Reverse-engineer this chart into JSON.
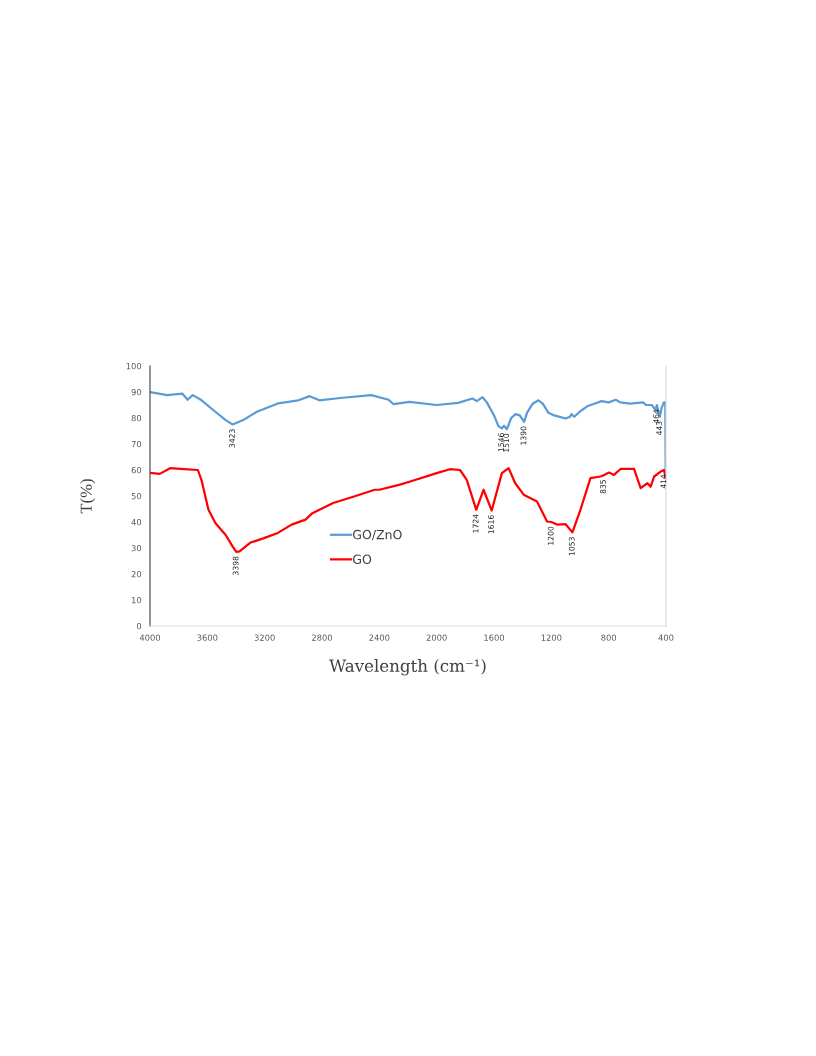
{
  "chart_data": {
    "type": "line",
    "xlabel": "Wavelength (cm⁻¹)",
    "ylabel": "T(%)",
    "xlim": [
      4000,
      400
    ],
    "xticks": [
      4000,
      3600,
      3200,
      2800,
      2400,
      2000,
      1600,
      1200,
      800,
      400
    ],
    "ylim": [
      0,
      100
    ],
    "yticks": [
      0,
      10,
      20,
      30,
      40,
      50,
      60,
      70,
      80,
      90,
      100
    ],
    "grid": false,
    "legend": "center",
    "marker": "none",
    "line_style": "solid",
    "series": [
      {
        "name": "GO/ZnO",
        "color": "#5b9bd5",
        "x": [
          4000,
          3880,
          3775,
          3738,
          3702,
          3640,
          3544,
          3472,
          3423,
          3350,
          3254,
          3108,
          2964,
          2886,
          2818,
          2673,
          2456,
          2335,
          2300,
          2190,
          2000,
          1850,
          1750,
          1720,
          1680,
          1650,
          1600,
          1570,
          1546,
          1530,
          1510,
          1480,
          1450,
          1420,
          1390,
          1370,
          1330,
          1290,
          1260,
          1220,
          1180,
          1100,
          1070,
          1060,
          1040,
          1000,
          950,
          900,
          850,
          800,
          750,
          720,
          650,
          560,
          540,
          500,
          470,
          464,
          443,
          430,
          415,
          405,
          402,
          400
        ],
        "values": [
          90,
          88.8,
          89.4,
          87,
          88.8,
          86.8,
          82.4,
          79.2,
          77.5,
          79.2,
          82.4,
          85.6,
          86.8,
          88.4,
          86.8,
          87.7,
          88.8,
          87,
          85.3,
          86.2,
          85,
          85.8,
          87.5,
          86.5,
          88,
          86,
          81,
          77,
          76,
          77,
          75.7,
          80,
          81.5,
          81,
          78.5,
          82,
          85.5,
          86.8,
          85.5,
          82,
          81,
          79.8,
          80.5,
          81.5,
          80.5,
          82.5,
          84.5,
          85.5,
          86.5,
          86,
          87,
          86,
          85.5,
          86,
          85,
          85,
          83,
          85,
          80.5,
          84,
          86,
          86,
          57,
          86
        ]
      },
      {
        "name": "GO",
        "color": "#ff0000",
        "x": [
          4000,
          3932,
          3860,
          3763,
          3666,
          3640,
          3592,
          3544,
          3472,
          3424,
          3398,
          3375,
          3302,
          3205,
          3108,
          3012,
          2915,
          2867,
          2722,
          2577,
          2432,
          2400,
          2263,
          2190,
          2000,
          1907,
          1837,
          1790,
          1724,
          1673,
          1616,
          1545,
          1498,
          1452,
          1393,
          1300,
          1230,
          1200,
          1160,
          1102,
          1053,
          997,
          927,
          857,
          835,
          798,
          763,
          717,
          623,
          577,
          530,
          507,
          483,
          437,
          414,
          402,
          400
        ],
        "values": [
          58.9,
          58.5,
          60.7,
          60.3,
          60,
          56,
          44.7,
          39.6,
          35,
          30.6,
          28.5,
          28.7,
          32,
          33.8,
          35.8,
          39,
          40.9,
          43.4,
          47.3,
          49.8,
          52.4,
          52.4,
          54.3,
          55.5,
          58.8,
          60.3,
          60,
          56.2,
          44.7,
          52.4,
          44.4,
          58.8,
          60.7,
          54.9,
          50.5,
          47.9,
          40.2,
          40,
          39,
          39.2,
          36,
          44.7,
          56.9,
          57.5,
          58,
          59,
          58.1,
          60.4,
          60.4,
          53,
          54.9,
          53.6,
          57.5,
          59.4,
          60,
          56.9,
          58
        ]
      }
    ],
    "annotations": [
      {
        "text": "3423",
        "x": 3423,
        "y": 77.5
      },
      {
        "text": "1546",
        "x": 1546,
        "y": 76
      },
      {
        "text": "1510",
        "x": 1510,
        "y": 75.7
      },
      {
        "text": "1390",
        "x": 1390,
        "y": 78.5
      },
      {
        "text": "464",
        "x": 464,
        "y": 85
      },
      {
        "text": "443",
        "x": 443,
        "y": 80.5
      },
      {
        "text": "3398",
        "x": 3398,
        "y": 28.5
      },
      {
        "text": "1724",
        "x": 1724,
        "y": 44.7
      },
      {
        "text": "1616",
        "x": 1616,
        "y": 44.4
      },
      {
        "text": "1200",
        "x": 1200,
        "y": 40
      },
      {
        "text": "1053",
        "x": 1053,
        "y": 36
      },
      {
        "text": "835",
        "x": 835,
        "y": 58
      },
      {
        "text": "414",
        "x": 414,
        "y": 60
      }
    ]
  }
}
